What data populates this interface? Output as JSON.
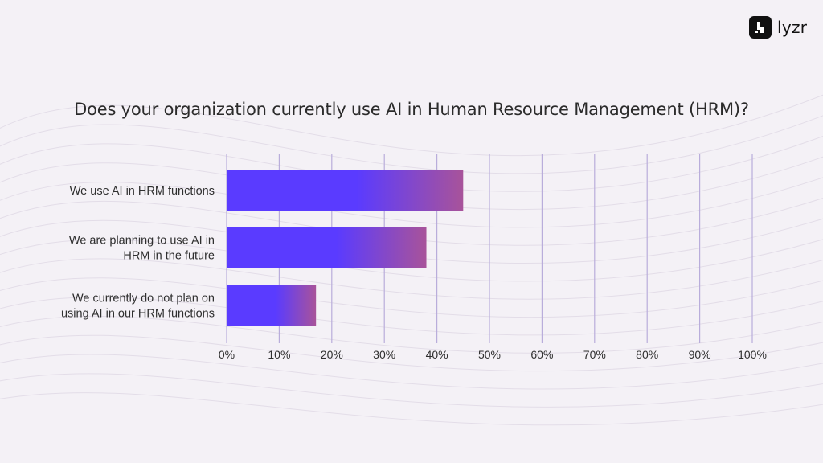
{
  "brand": {
    "name": "lyzr",
    "logo_icon": "lyzr-logo-icon"
  },
  "colors": {
    "background": "#f4f1f6",
    "bar_start": "#5a3bff",
    "bar_end": "#a8539a",
    "gridline": "#b9addb",
    "text": "#2f2f2f"
  },
  "chart_data": {
    "type": "bar",
    "orientation": "horizontal",
    "title": "Does your organization currently use AI in Human Resource Management (HRM)?",
    "categories": [
      [
        "We use AI in HRM functions"
      ],
      [
        "We are planning to use AI in",
        "HRM in the future"
      ],
      [
        "We currently do not plan on",
        "using AI in our HRM functions"
      ]
    ],
    "values": [
      45,
      38,
      17
    ],
    "unit": "%",
    "xlim": [
      0,
      100
    ],
    "xticks": [
      "0%",
      "10%",
      "20%",
      "30%",
      "40%",
      "50%",
      "60%",
      "70%",
      "80%",
      "90%",
      "100%"
    ],
    "grid": true,
    "legend": "none"
  }
}
